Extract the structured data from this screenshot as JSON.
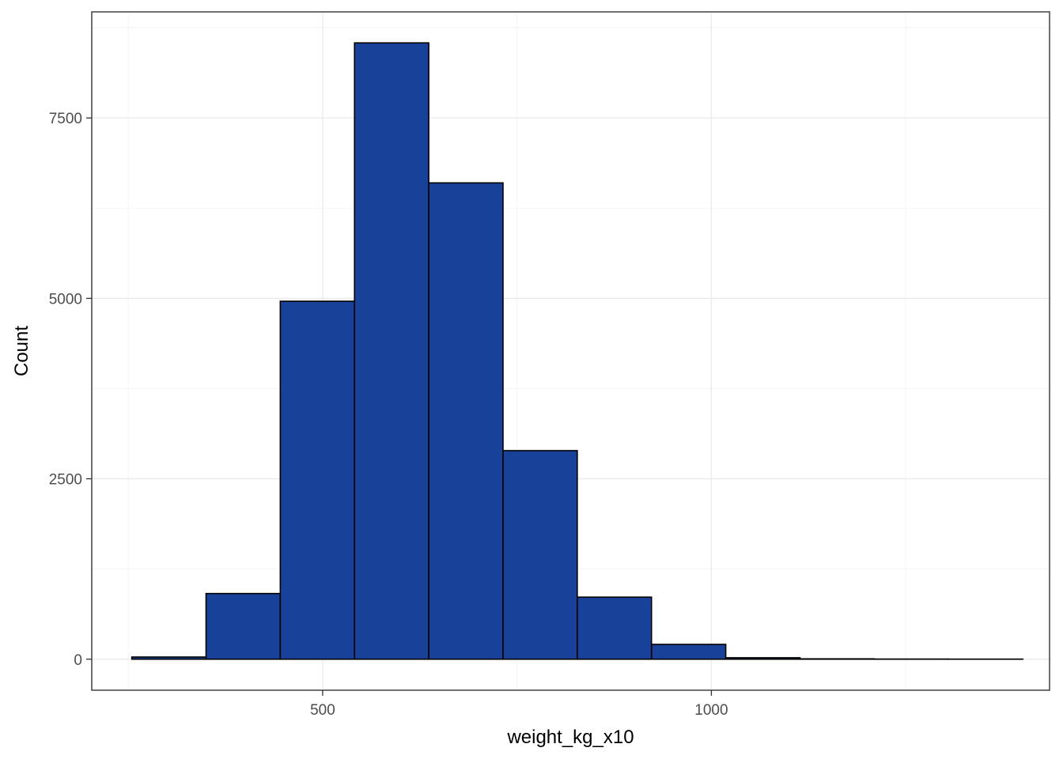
{
  "chart_data": {
    "type": "bar",
    "title": "",
    "xlabel": "weight_kg_x10",
    "ylabel": "Count",
    "bin_width": 95.5,
    "bins": [
      {
        "start": 254.5,
        "end": 350.0,
        "count": 30
      },
      {
        "start": 350.0,
        "end": 445.5,
        "count": 910
      },
      {
        "start": 445.5,
        "end": 541.0,
        "count": 4960
      },
      {
        "start": 541.0,
        "end": 636.5,
        "count": 8540
      },
      {
        "start": 636.5,
        "end": 732.0,
        "count": 6600
      },
      {
        "start": 732.0,
        "end": 827.5,
        "count": 2890
      },
      {
        "start": 827.5,
        "end": 923.0,
        "count": 860
      },
      {
        "start": 923.0,
        "end": 1018.5,
        "count": 205
      },
      {
        "start": 1018.5,
        "end": 1114.0,
        "count": 20
      },
      {
        "start": 1114.0,
        "end": 1209.5,
        "count": 5
      },
      {
        "start": 1209.5,
        "end": 1305.0,
        "count": 2
      },
      {
        "start": 1305.0,
        "end": 1400.5,
        "count": 1
      }
    ],
    "x_ticks": [
      500,
      1000
    ],
    "y_ticks": [
      0,
      2500,
      5000,
      7500
    ],
    "xlim": [
      203,
      1435
    ],
    "ylim": [
      -430,
      8970
    ],
    "grid": true,
    "legend": "none",
    "colors": {
      "bar_fill": "#18429A",
      "bar_outline": "#000000",
      "panel_border": "#333333",
      "grid": "#ebebeb"
    }
  }
}
